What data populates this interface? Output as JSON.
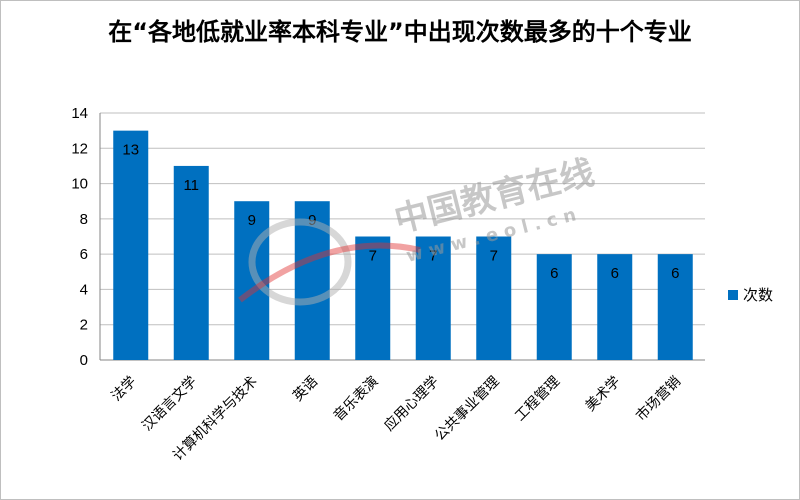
{
  "chart_data": {
    "type": "bar",
    "title": "在“各地低就业率本科专业”中出现次数最多的十个专业",
    "categories": [
      "法学",
      "汉语言文学",
      "计算机科学与技术",
      "英语",
      "音乐表演",
      "应用心理学",
      "公共事业管理",
      "工程管理",
      "美术学",
      "市场营销"
    ],
    "series": [
      {
        "name": "次数",
        "values": [
          13,
          11,
          9,
          9,
          7,
          7,
          7,
          6,
          6,
          6
        ],
        "color": "#0070c0"
      }
    ],
    "ylim": [
      0,
      14
    ],
    "yticks": [
      0,
      2,
      4,
      6,
      8,
      10,
      12,
      14
    ],
    "grid": true,
    "legend": "right",
    "data_labels": true
  },
  "watermark": {
    "text_cn": "中国教育在线",
    "text_url": "w w w . e o l . c n"
  }
}
